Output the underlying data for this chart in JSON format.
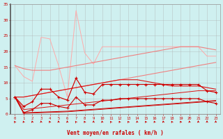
{
  "x": [
    0,
    1,
    2,
    3,
    4,
    5,
    6,
    7,
    8,
    9,
    10,
    11,
    12,
    13,
    14,
    15,
    16,
    17,
    18,
    19,
    20,
    21,
    22,
    23
  ],
  "line_max_gust_light": [
    15.5,
    12.0,
    10.5,
    24.5,
    24.0,
    15.5,
    5.5,
    33.0,
    19.5,
    16.0,
    21.5,
    21.5,
    21.5,
    21.5,
    21.5,
    21.5,
    21.5,
    21.5,
    21.5,
    21.5,
    21.5,
    21.5,
    18.5,
    18.5
  ],
  "line_avg_gust_light": [
    5.5,
    2.5,
    4.0,
    8.0,
    8.0,
    5.5,
    4.5,
    11.5,
    7.0,
    6.5,
    9.5,
    9.5,
    9.5,
    9.5,
    9.5,
    9.5,
    9.5,
    9.5,
    9.5,
    9.5,
    9.5,
    9.5,
    7.5,
    7.0
  ],
  "line_trend_max_light": [
    15.5,
    14.5,
    14.0,
    14.0,
    14.0,
    14.5,
    15.0,
    15.5,
    16.0,
    16.5,
    17.0,
    17.5,
    18.0,
    18.5,
    19.0,
    19.5,
    20.0,
    20.5,
    21.0,
    21.5,
    21.5,
    21.5,
    21.0,
    20.5
  ],
  "line_trend_avg_light": [
    5.5,
    5.5,
    6.0,
    6.5,
    7.0,
    7.5,
    8.0,
    8.5,
    9.0,
    9.5,
    10.0,
    10.5,
    11.0,
    11.5,
    12.0,
    12.5,
    13.0,
    13.5,
    14.0,
    14.5,
    15.0,
    15.5,
    16.0,
    16.5
  ],
  "line_max_gust_dark": [
    5.5,
    2.5,
    4.0,
    8.0,
    8.0,
    5.5,
    4.5,
    11.5,
    7.0,
    6.5,
    9.5,
    9.5,
    9.5,
    9.5,
    9.5,
    9.5,
    9.5,
    9.5,
    9.5,
    9.5,
    9.5,
    9.5,
    7.5,
    7.0
  ],
  "line_avg_wind_dark": [
    5.5,
    0.5,
    1.5,
    3.5,
    3.5,
    2.5,
    2.0,
    5.5,
    3.0,
    3.0,
    4.5,
    4.5,
    5.0,
    5.0,
    5.0,
    5.0,
    5.0,
    5.0,
    5.0,
    5.0,
    5.0,
    5.0,
    4.0,
    3.5
  ],
  "line_trend_max_dark": [
    5.5,
    5.5,
    6.0,
    6.5,
    7.0,
    7.5,
    8.0,
    8.5,
    9.0,
    9.5,
    10.0,
    10.5,
    11.0,
    11.0,
    11.0,
    10.5,
    10.0,
    9.5,
    9.0,
    9.0,
    9.0,
    9.0,
    8.5,
    8.0
  ],
  "line_trend_avg_dark": [
    5.5,
    1.5,
    1.8,
    2.1,
    2.4,
    2.7,
    3.0,
    3.3,
    3.6,
    3.9,
    4.2,
    4.5,
    4.8,
    5.1,
    5.4,
    5.7,
    6.0,
    6.3,
    6.6,
    6.9,
    7.2,
    7.5,
    7.5,
    7.5
  ],
  "line_base_dark": [
    5.5,
    0.5,
    0.6,
    0.7,
    0.8,
    0.9,
    1.0,
    1.2,
    1.4,
    1.6,
    1.8,
    2.0,
    2.2,
    2.4,
    2.6,
    2.8,
    3.0,
    3.2,
    3.4,
    3.6,
    3.8,
    4.0,
    4.2,
    4.4
  ],
  "line_base2_dark": [
    5.5,
    0.3,
    0.4,
    0.5,
    0.6,
    0.7,
    0.8,
    1.0,
    1.2,
    1.4,
    1.6,
    1.8,
    2.0,
    2.2,
    2.4,
    2.6,
    2.8,
    3.0,
    3.2,
    3.4,
    3.6,
    3.8,
    4.0,
    4.2
  ],
  "color_light": "#f08080",
  "color_light2": "#ffaaaa",
  "color_dark": "#cc0000",
  "color_dark2": "#dd1111",
  "bg_color": "#cff0f0",
  "grid_color": "#aaaaaa",
  "text_color": "#cc0000",
  "xlabel": "Vent moyen/en rafales ( km/h )",
  "ylim": [
    0,
    35
  ],
  "xlim": [
    -0.5,
    23.5
  ],
  "yticks": [
    0,
    5,
    10,
    15,
    20,
    25,
    30,
    35
  ]
}
